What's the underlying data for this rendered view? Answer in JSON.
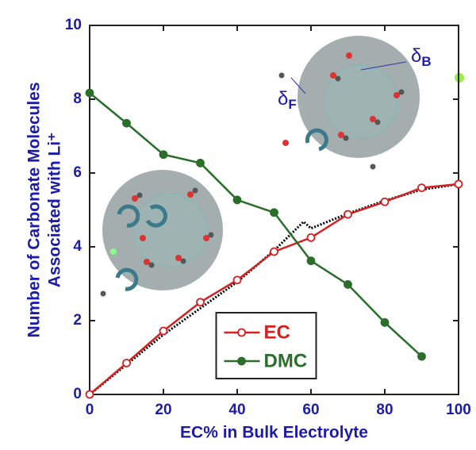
{
  "chart_data": {
    "type": "line",
    "xlabel": "EC% in Bulk Electrolyte",
    "ylabel": [
      "Number of Carbonate Molecules",
      "Associated with Li⁺"
    ],
    "x": [
      0,
      10,
      20,
      30,
      40,
      50,
      60,
      70,
      80,
      90,
      100
    ],
    "series": [
      {
        "name": "EC",
        "color": "#d42020",
        "marker": "open",
        "values": [
          0,
          0.85,
          1.72,
          2.5,
          3.1,
          3.87,
          4.25,
          4.88,
          5.22,
          5.6,
          5.7
        ]
      },
      {
        "name": "DMC",
        "color": "#2a6e2a",
        "marker": "filled",
        "values": [
          8.17,
          7.35,
          6.5,
          6.27,
          5.27,
          4.93,
          3.62,
          2.98,
          1.95,
          1.03,
          null
        ]
      }
    ],
    "fit_line": {
      "color": "#000000",
      "x": [
        0,
        20,
        40,
        50,
        58,
        60,
        70,
        80,
        90,
        100
      ],
      "values": [
        0,
        1.62,
        3.05,
        3.9,
        4.68,
        4.5,
        4.9,
        5.25,
        5.55,
        5.7
      ]
    },
    "annotations": [
      {
        "text": "δ",
        "sub": "F"
      },
      {
        "text": "δ",
        "sub": "B"
      }
    ],
    "xlim": [
      0,
      100
    ],
    "xticks": [
      0,
      20,
      40,
      60,
      80,
      100
    ],
    "ylim": [
      0,
      10
    ],
    "yticks": [
      0,
      2,
      4,
      6,
      8,
      10
    ],
    "legend": "lower center"
  }
}
